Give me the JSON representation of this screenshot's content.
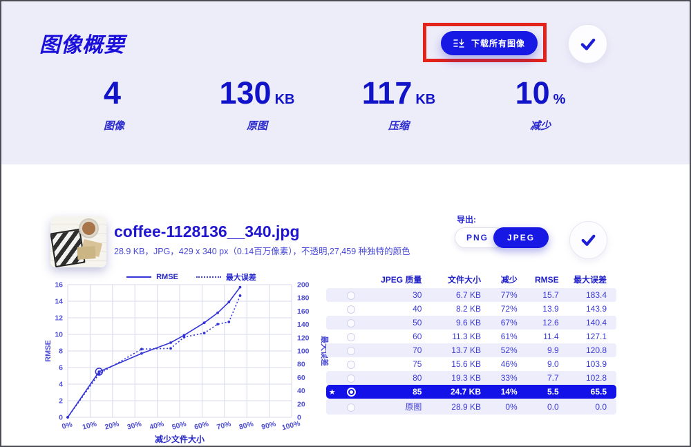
{
  "page": {
    "title": "图像概要"
  },
  "header": {
    "download_button": {
      "label": "下载所有图像"
    },
    "stats": [
      {
        "value": "4",
        "unit": "",
        "label": "图像"
      },
      {
        "value": "130",
        "unit": "KB",
        "label": "原图"
      },
      {
        "value": "117",
        "unit": "KB",
        "label": "压缩"
      },
      {
        "value": "10",
        "unit": "%",
        "label": "减少"
      }
    ]
  },
  "image_card": {
    "filename": "coffee-1128136__340.jpg",
    "details": "28.9 KB，JPG，429 x 340 px（0.14百万像素），不透明,27,459 种独特的颜色",
    "export_label": "导出:",
    "format_options": [
      {
        "label": "PNG",
        "selected": false
      },
      {
        "label": "JPEG",
        "selected": true
      }
    ]
  },
  "chart_data": {
    "type": "line",
    "title": "",
    "xlabel": "减少文件大小",
    "ylabel_left": "RMSE",
    "ylabel_right": "最大误差",
    "legend": [
      "RMSE",
      "最大误差"
    ],
    "xlim": [
      0,
      100
    ],
    "x_ticks": [
      "0%",
      "10%",
      "20%",
      "30%",
      "40%",
      "50%",
      "60%",
      "70%",
      "80%",
      "90%",
      "100%"
    ],
    "ylim_left": [
      0,
      16
    ],
    "y_ticks_left": [
      0,
      2,
      4,
      6,
      8,
      10,
      12,
      14,
      16
    ],
    "ylim_right": [
      0,
      200
    ],
    "y_ticks_right": [
      0,
      20,
      40,
      60,
      80,
      100,
      120,
      140,
      160,
      180,
      200
    ],
    "grid": true,
    "legend_position": "top",
    "series": [
      {
        "name": "RMSE",
        "axis": "left",
        "style": "solid",
        "x": [
          0,
          14,
          33,
          46,
          52,
          61,
          67,
          72,
          77
        ],
        "values": [
          0,
          5.5,
          7.7,
          9.0,
          9.9,
          11.4,
          12.6,
          13.9,
          15.7
        ],
        "highlight_x": 14
      },
      {
        "name": "最大误差",
        "axis": "right",
        "style": "dotted",
        "x": [
          0,
          14,
          33,
          46,
          52,
          61,
          67,
          72,
          77
        ],
        "values": [
          0,
          65.5,
          102.8,
          103.9,
          120.8,
          127.1,
          140.4,
          143.9,
          183.4
        ]
      }
    ]
  },
  "table": {
    "headers": [
      "JPEG 质量",
      "文件大小",
      "减少",
      "RMSE",
      "最大误差"
    ],
    "rows": [
      {
        "quality": "30",
        "size": "6.7 KB",
        "reduction": "77%",
        "rmse": "15.7",
        "max_error": "183.4",
        "selected": false
      },
      {
        "quality": "40",
        "size": "8.2 KB",
        "reduction": "72%",
        "rmse": "13.9",
        "max_error": "143.9",
        "selected": false
      },
      {
        "quality": "50",
        "size": "9.6 KB",
        "reduction": "67%",
        "rmse": "12.6",
        "max_error": "140.4",
        "selected": false
      },
      {
        "quality": "60",
        "size": "11.3 KB",
        "reduction": "61%",
        "rmse": "11.4",
        "max_error": "127.1",
        "selected": false
      },
      {
        "quality": "70",
        "size": "13.7 KB",
        "reduction": "52%",
        "rmse": "9.9",
        "max_error": "120.8",
        "selected": false
      },
      {
        "quality": "75",
        "size": "15.6 KB",
        "reduction": "46%",
        "rmse": "9.0",
        "max_error": "103.9",
        "selected": false
      },
      {
        "quality": "80",
        "size": "19.3 KB",
        "reduction": "33%",
        "rmse": "7.7",
        "max_error": "102.8",
        "selected": false
      },
      {
        "quality": "85",
        "size": "24.7 KB",
        "reduction": "14%",
        "rmse": "5.5",
        "max_error": "65.5",
        "selected": true
      },
      {
        "quality": "原图",
        "size": "28.9 KB",
        "reduction": "0%",
        "rmse": "0.0",
        "max_error": "0.0",
        "selected": false
      }
    ]
  },
  "colors": {
    "accent_blue": "#1718e3",
    "deep_blue": "#1113c8",
    "band_bg": "#edecf9",
    "selected_row": "#1111e8",
    "annotation_red": "#e3231c",
    "grid_line": "#d8d8ef"
  }
}
